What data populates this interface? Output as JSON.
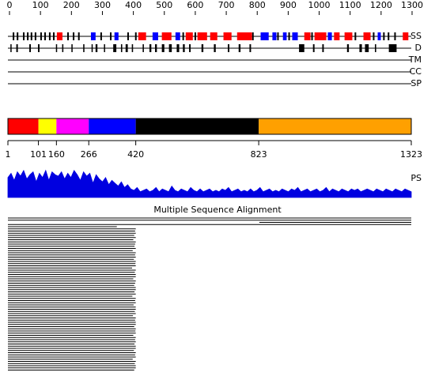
{
  "ruler": {
    "lim": [
      0,
      1300
    ],
    "ticks": [
      0,
      100,
      200,
      300,
      400,
      500,
      600,
      700,
      800,
      900,
      1000,
      1100,
      1200,
      1300
    ]
  },
  "tracks": {
    "ss": {
      "label": "SS",
      "helix": [
        [
          153,
          171
        ],
        [
          416,
          441
        ],
        [
          492,
          523
        ],
        [
          569,
          592
        ],
        [
          607,
          638
        ],
        [
          648,
          671
        ],
        [
          691,
          717
        ],
        [
          735,
          783
        ],
        [
          952,
          972
        ],
        [
          985,
          1023
        ],
        [
          1048,
          1066
        ],
        [
          1082,
          1107
        ],
        [
          1143,
          1166
        ],
        [
          1270,
          1288
        ]
      ],
      "strand": [
        [
          263,
          278
        ],
        [
          339,
          352
        ],
        [
          462,
          480
        ],
        [
          536,
          551
        ],
        [
          811,
          837
        ],
        [
          849,
          862
        ],
        [
          883,
          895
        ],
        [
          913,
          931
        ],
        [
          1028,
          1041
        ],
        [
          1189,
          1199
        ]
      ],
      "marks": [
        13,
        26,
        46,
        59,
        71,
        84,
        102,
        115,
        130,
        143,
        189,
        207,
        224,
        296,
        327,
        383,
        408,
        561,
        582,
        600,
        786,
        867,
        903,
        977,
        1117,
        1176,
        1209,
        1224,
        1245
      ]
    },
    "d": {
      "label": "D",
      "regions": [
        [
          3,
          6
        ],
        [
          22,
          27
        ],
        [
          64,
          69
        ],
        [
          92,
          97
        ],
        [
          150,
          153
        ],
        [
          170,
          174
        ],
        [
          200,
          203
        ],
        [
          238,
          242
        ],
        [
          265,
          268
        ],
        [
          278,
          284
        ],
        [
          305,
          308
        ],
        [
          335,
          345
        ],
        [
          360,
          364
        ],
        [
          375,
          382
        ],
        [
          395,
          399
        ],
        [
          430,
          434
        ],
        [
          452,
          458
        ],
        [
          470,
          476
        ],
        [
          492,
          500
        ],
        [
          515,
          524
        ],
        [
          540,
          548
        ],
        [
          560,
          566
        ],
        [
          580,
          585
        ],
        [
          620,
          626
        ],
        [
          660,
          666
        ],
        [
          705,
          710
        ],
        [
          740,
          746
        ],
        [
          775,
          780
        ],
        [
          935,
          952
        ],
        [
          980,
          985
        ],
        [
          1010,
          1015
        ],
        [
          1090,
          1096
        ],
        [
          1130,
          1138
        ],
        [
          1148,
          1160
        ],
        [
          1180,
          1184
        ],
        [
          1225,
          1250
        ]
      ]
    },
    "tm": {
      "label": "TM"
    },
    "cc": {
      "label": "CC"
    },
    "sp": {
      "label": "SP"
    }
  },
  "domains": {
    "lim": [
      1,
      1323
    ],
    "segments": [
      {
        "start": 1,
        "end": 101,
        "color": "#ff0000"
      },
      {
        "start": 101,
        "end": 160,
        "color": "#ffff00"
      },
      {
        "start": 160,
        "end": 266,
        "color": "#ff00ff"
      },
      {
        "start": 266,
        "end": 420,
        "color": "#0000ff"
      },
      {
        "start": 420,
        "end": 823,
        "color": "#000000"
      },
      {
        "start": 823,
        "end": 1323,
        "color": "#ffa000"
      }
    ],
    "boundaries": [
      1,
      101,
      160,
      266,
      420,
      823,
      1323
    ]
  },
  "ps": {
    "label": "PS",
    "ylim": [
      0,
      1
    ],
    "color": "#0000e0",
    "values": [
      0.7,
      0.85,
      0.6,
      0.9,
      0.75,
      0.95,
      0.65,
      0.8,
      0.9,
      0.55,
      0.85,
      0.7,
      0.95,
      0.6,
      0.9,
      0.8,
      0.75,
      0.9,
      0.65,
      0.85,
      0.7,
      0.95,
      0.8,
      0.6,
      0.9,
      0.75,
      0.85,
      0.5,
      0.8,
      0.65,
      0.55,
      0.7,
      0.45,
      0.6,
      0.5,
      0.4,
      0.55,
      0.35,
      0.45,
      0.3,
      0.25,
      0.35,
      0.2,
      0.25,
      0.3,
      0.2,
      0.25,
      0.35,
      0.2,
      0.3,
      0.25,
      0.2,
      0.4,
      0.25,
      0.2,
      0.3,
      0.25,
      0.2,
      0.35,
      0.25,
      0.2,
      0.3,
      0.2,
      0.25,
      0.3,
      0.2,
      0.25,
      0.2,
      0.3,
      0.25,
      0.35,
      0.2,
      0.25,
      0.3,
      0.2,
      0.25,
      0.2,
      0.3,
      0.2,
      0.25,
      0.35,
      0.2,
      0.25,
      0.3,
      0.2,
      0.25,
      0.2,
      0.3,
      0.25,
      0.2,
      0.3,
      0.25,
      0.35,
      0.2,
      0.25,
      0.3,
      0.2,
      0.25,
      0.3,
      0.2,
      0.25,
      0.35,
      0.2,
      0.3,
      0.25,
      0.2,
      0.3,
      0.25,
      0.2,
      0.3,
      0.25,
      0.3,
      0.2,
      0.25,
      0.3,
      0.25,
      0.2,
      0.3,
      0.25,
      0.2,
      0.3,
      0.25,
      0.2,
      0.3,
      0.25,
      0.2,
      0.3,
      0.25,
      0.2
    ]
  },
  "alignment": {
    "title": "Multiple Sequence Alignment",
    "hits": [
      [
        1,
        1323
      ],
      [
        1,
        1323
      ],
      [
        825,
        1323
      ],
      [
        1,
        1323
      ],
      [
        1,
        358
      ],
      [
        1,
        420
      ],
      [
        1,
        418
      ],
      [
        1,
        420
      ],
      [
        1,
        415
      ],
      [
        1,
        420
      ],
      [
        1,
        412
      ],
      [
        1,
        420
      ],
      [
        1,
        418
      ],
      [
        1,
        416
      ],
      [
        1,
        420
      ],
      [
        1,
        410
      ],
      [
        1,
        420
      ],
      [
        1,
        418
      ],
      [
        1,
        420
      ],
      [
        1,
        414
      ],
      [
        1,
        420
      ],
      [
        1,
        419
      ],
      [
        1,
        420
      ],
      [
        1,
        408
      ],
      [
        1,
        420
      ],
      [
        1,
        417
      ],
      [
        1,
        420
      ],
      [
        1,
        420
      ],
      [
        1,
        412
      ],
      [
        1,
        420
      ],
      [
        1,
        418
      ],
      [
        1,
        415
      ],
      [
        1,
        420
      ],
      [
        1,
        420
      ],
      [
        1,
        416
      ],
      [
        1,
        420
      ],
      [
        1,
        409
      ],
      [
        1,
        420
      ],
      [
        1,
        418
      ],
      [
        1,
        420
      ],
      [
        1,
        413
      ],
      [
        1,
        420
      ],
      [
        1,
        420
      ],
      [
        1,
        417
      ],
      [
        1,
        420
      ],
      [
        1,
        411
      ],
      [
        1,
        420
      ],
      [
        1,
        418
      ],
      [
        1,
        420
      ],
      [
        1,
        420
      ],
      [
        1,
        415
      ],
      [
        1,
        420
      ],
      [
        1,
        419
      ],
      [
        1,
        420
      ],
      [
        1,
        412
      ],
      [
        1,
        420
      ],
      [
        1,
        418
      ],
      [
        1,
        420
      ],
      [
        1,
        416
      ],
      [
        1,
        420
      ],
      [
        1,
        420
      ],
      [
        1,
        414
      ],
      [
        1,
        420
      ],
      [
        1,
        418
      ],
      [
        1,
        420
      ],
      [
        1,
        410
      ],
      [
        1,
        420
      ],
      [
        1,
        417
      ],
      [
        1,
        420
      ],
      [
        1,
        420
      ],
      [
        1,
        415
      ]
    ]
  }
}
